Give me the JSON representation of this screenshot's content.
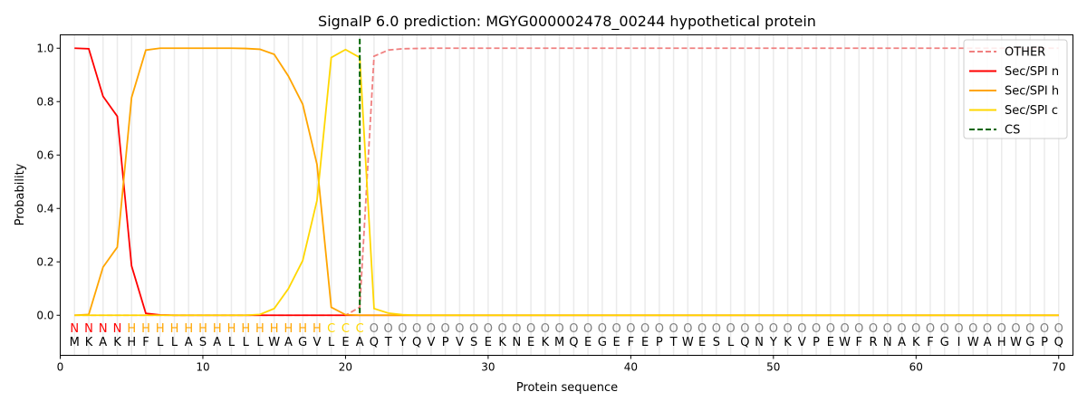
{
  "chart_data": {
    "type": "line",
    "title": "SignalP 6.0 prediction: MGYG000002478_00244 hypothetical protein",
    "xlabel": "Protein sequence",
    "ylabel": "Probability",
    "xlim": [
      0,
      71
    ],
    "ylim": [
      -0.15,
      1.05
    ],
    "xticks": [
      0,
      10,
      20,
      30,
      40,
      50,
      60,
      70
    ],
    "yticks": [
      0.0,
      0.2,
      0.4,
      0.6,
      0.8,
      1.0
    ],
    "ytick_labels": [
      "0.0",
      "0.2",
      "0.4",
      "0.6",
      "0.8",
      "1.0"
    ],
    "grid": "vertical at each residue",
    "legend_position": "top-right",
    "sequence": "MKAKHFLLASALLLWAGVLEAQTYQVPVSEKNEKMQEGEFEPTWESLQNYKVPEWFRNAKFGIWAHWGPQ",
    "labels": "NNNNHHHHHHHHHHHHHHCCCOOOOOOOOOOOOOOOOOOOOOOOOOOOOOOOOOOOOOOOOOOOOOOOOO",
    "label_colors": {
      "N": "#ff0000",
      "H": "#ffa500",
      "C": "#ffd700",
      "O": "#808080"
    },
    "cleavage_site": 21,
    "series": [
      {
        "name": "OTHER",
        "color": "#f08080",
        "dash": true,
        "values": [
          0,
          0,
          0,
          0,
          0,
          0,
          0,
          0,
          0,
          0,
          0,
          0,
          0,
          0,
          0,
          0,
          0,
          0,
          0,
          0,
          0.03,
          0.97,
          0.993,
          0.998,
          0.999,
          1,
          1,
          1,
          1,
          1,
          1,
          1,
          1,
          1,
          1,
          1,
          1,
          1,
          1,
          1,
          1,
          1,
          1,
          1,
          1,
          1,
          1,
          1,
          1,
          1,
          1,
          1,
          1,
          1,
          1,
          1,
          1,
          1,
          1,
          1,
          1,
          1,
          1,
          1,
          1,
          1,
          1,
          1,
          1,
          1
        ]
      },
      {
        "name": "Sec/SPI n",
        "color": "#ff0000",
        "values": [
          1.0,
          0.998,
          0.82,
          0.745,
          0.185,
          0.007,
          0.001,
          0,
          0,
          0,
          0,
          0,
          0,
          0,
          0,
          0,
          0,
          0,
          0,
          0,
          0,
          0,
          0,
          0,
          0,
          0,
          0,
          0,
          0,
          0,
          0,
          0,
          0,
          0,
          0,
          0,
          0,
          0,
          0,
          0,
          0,
          0,
          0,
          0,
          0,
          0,
          0,
          0,
          0,
          0,
          0,
          0,
          0,
          0,
          0,
          0,
          0,
          0,
          0,
          0,
          0,
          0,
          0,
          0,
          0,
          0,
          0,
          0,
          0,
          0
        ]
      },
      {
        "name": "Sec/SPI h",
        "color": "#ffa500",
        "values": [
          0,
          0.003,
          0.18,
          0.255,
          0.815,
          0.993,
          1.0,
          1.0,
          1.0,
          1.0,
          1.0,
          1.0,
          0.999,
          0.996,
          0.977,
          0.895,
          0.79,
          0.565,
          0.03,
          0.002,
          0,
          0,
          0,
          0,
          0,
          0,
          0,
          0,
          0,
          0,
          0,
          0,
          0,
          0,
          0,
          0,
          0,
          0,
          0,
          0,
          0,
          0,
          0,
          0,
          0,
          0,
          0,
          0,
          0,
          0,
          0,
          0,
          0,
          0,
          0,
          0,
          0,
          0,
          0,
          0,
          0,
          0,
          0,
          0,
          0,
          0,
          0,
          0,
          0,
          0
        ]
      },
      {
        "name": "Sec/SPI c",
        "color": "#ffd700",
        "values": [
          0,
          0,
          0,
          0,
          0,
          0,
          0,
          0,
          0,
          0,
          0,
          0,
          0,
          0.003,
          0.025,
          0.1,
          0.205,
          0.43,
          0.965,
          0.995,
          0.965,
          0.025,
          0.008,
          0.002,
          0,
          0,
          0,
          0,
          0,
          0,
          0,
          0,
          0,
          0,
          0,
          0,
          0,
          0,
          0,
          0,
          0,
          0,
          0,
          0,
          0,
          0,
          0,
          0,
          0,
          0,
          0,
          0,
          0,
          0,
          0,
          0,
          0,
          0,
          0,
          0,
          0,
          0,
          0,
          0,
          0,
          0,
          0,
          0,
          0,
          0
        ]
      },
      {
        "name": "CS",
        "color": "#006400",
        "dash": true,
        "vertical_at": 21
      }
    ]
  }
}
